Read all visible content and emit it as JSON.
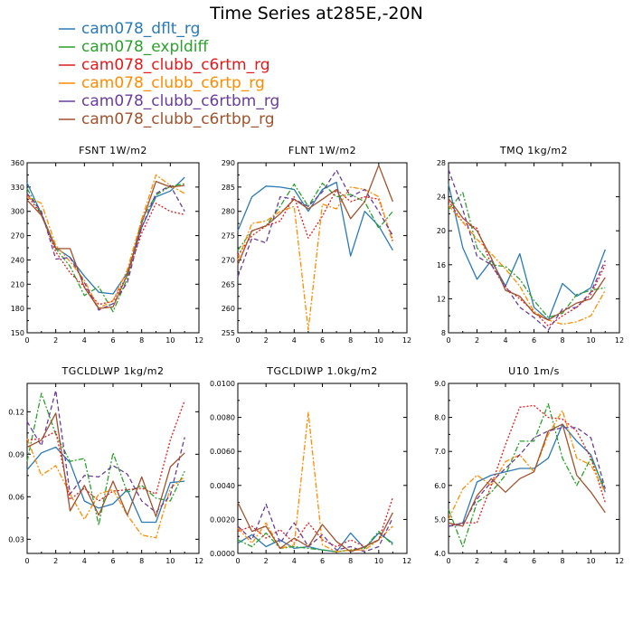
{
  "figure": {
    "title": "Time Series at285E,-20N"
  },
  "legend": [
    {
      "name": "cam078_dflt_rg",
      "color": "#2a7ab5",
      "dash": "solid"
    },
    {
      "name": "cam078_expldiff",
      "color": "#2ca02c",
      "dash": "dashdot"
    },
    {
      "name": "cam078_clubb_c6rtm_rg",
      "color": "#e31a1c",
      "dash": "dot"
    },
    {
      "name": "cam078_clubb_c6rtp_rg",
      "color": "#ff8c00",
      "dash": "dashdot"
    },
    {
      "name": "cam078_clubb_c6rtbm_rg",
      "color": "#6a3d9a",
      "dash": "dash"
    },
    {
      "name": "cam078_clubb_c6rtbp_rg",
      "color": "#a0522d",
      "dash": "solid"
    }
  ],
  "chart_data": [
    {
      "type": "line",
      "title": "FSNT  1W/m2",
      "xlim": [
        0,
        12
      ],
      "xticks": [
        0,
        2,
        4,
        6,
        8,
        10,
        12
      ],
      "ylim": [
        150,
        360
      ],
      "yticks": [
        150,
        180,
        210,
        240,
        270,
        300,
        330,
        360
      ],
      "ytick_labels": [
        "150",
        "180",
        "210",
        "240",
        "270",
        "300",
        "330",
        "360"
      ],
      "x": [
        0,
        1,
        2,
        3,
        4,
        5,
        6,
        7,
        8,
        9,
        10,
        11
      ],
      "series": [
        {
          "name": "cam078_dflt_rg",
          "values": [
            335,
            297,
            255,
            243,
            220,
            200,
            198,
            224,
            280,
            318,
            325,
            342
          ]
        },
        {
          "name": "cam078_expldiff",
          "values": [
            328,
            296,
            254,
            232,
            196,
            207,
            176,
            217,
            290,
            320,
            331,
            334
          ]
        },
        {
          "name": "cam078_clubb_c6rtm_rg",
          "values": [
            320,
            296,
            250,
            224,
            207,
            185,
            189,
            221,
            273,
            310,
            300,
            296
          ]
        },
        {
          "name": "cam078_clubb_c6rtp_rg",
          "values": [
            318,
            310,
            258,
            238,
            215,
            180,
            190,
            228,
            290,
            345,
            332,
            322
          ]
        },
        {
          "name": "cam078_clubb_c6rtbm_rg",
          "values": [
            322,
            300,
            241,
            243,
            212,
            178,
            186,
            212,
            280,
            322,
            332,
            300
          ]
        },
        {
          "name": "cam078_clubb_c6rtbp_rg",
          "values": [
            314,
            295,
            254,
            254,
            206,
            180,
            182,
            222,
            285,
            337,
            330,
            332
          ]
        }
      ]
    },
    {
      "type": "line",
      "title": "FLNT  1W/m2",
      "xlim": [
        0,
        12
      ],
      "xticks": [
        0,
        2,
        4,
        6,
        8,
        10,
        12
      ],
      "ylim": [
        255,
        290
      ],
      "yticks": [
        255,
        260,
        265,
        270,
        275,
        280,
        285,
        290
      ],
      "ytick_labels": [
        "255",
        "260",
        "265",
        "270",
        "275",
        "280",
        "285",
        "290"
      ],
      "x": [
        0,
        1,
        2,
        3,
        4,
        5,
        6,
        7,
        8,
        9,
        10,
        11
      ],
      "series": [
        {
          "name": "cam078_dflt_rg",
          "values": [
            276,
            283,
            285.2,
            285,
            284.5,
            280,
            284.5,
            286,
            270.8,
            280,
            277,
            272
          ]
        },
        {
          "name": "cam078_expldiff",
          "values": [
            272,
            276,
            277,
            281,
            285.6,
            281,
            285.8,
            283,
            283.5,
            282,
            276.5,
            280
          ]
        },
        {
          "name": "cam078_clubb_c6rtm_rg",
          "values": [
            271,
            275,
            277,
            278,
            283,
            274.5,
            279,
            284.5,
            282,
            283,
            282.5,
            274
          ]
        },
        {
          "name": "cam078_clubb_c6rtp_rg",
          "values": [
            270,
            277.5,
            278,
            280,
            281,
            255.6,
            281.5,
            280.5,
            285,
            284.5,
            283,
            273.5
          ]
        },
        {
          "name": "cam078_clubb_c6rtbm_rg",
          "values": [
            266.5,
            274.5,
            273.5,
            283,
            282.5,
            281,
            284,
            288.5,
            283,
            284.5,
            280,
            275
          ]
        },
        {
          "name": "cam078_clubb_c6rtbp_rg",
          "values": [
            269,
            276,
            277,
            279.5,
            282.5,
            280.5,
            282.5,
            284.5,
            278.5,
            282,
            289.5,
            282
          ]
        }
      ]
    },
    {
      "type": "line",
      "title": "TMQ  1kg/m2",
      "xlim": [
        0,
        12
      ],
      "xticks": [
        0,
        2,
        4,
        6,
        8,
        10,
        12
      ],
      "ylim": [
        8,
        28
      ],
      "yticks": [
        8,
        12,
        16,
        20,
        24,
        28
      ],
      "ytick_labels": [
        "8",
        "12",
        "16",
        "20",
        "24",
        "28"
      ],
      "x": [
        0,
        1,
        2,
        3,
        4,
        5,
        6,
        7,
        8,
        9,
        10,
        11
      ],
      "series": [
        {
          "name": "cam078_dflt_rg",
          "values": [
            25.5,
            18,
            14.3,
            16.5,
            13.5,
            17.3,
            11,
            9.5,
            13.8,
            12.3,
            13.3,
            17.8
          ]
        },
        {
          "name": "cam078_expldiff",
          "values": [
            22.5,
            24.5,
            18,
            16,
            15.8,
            14.3,
            11.8,
            9.8,
            10.3,
            12.5,
            13,
            13.3
          ]
        },
        {
          "name": "cam078_clubb_c6rtm_rg",
          "values": [
            23.5,
            21,
            20.3,
            16,
            13.3,
            12,
            10.5,
            8.8,
            10,
            11,
            12.5,
            16
          ]
        },
        {
          "name": "cam078_clubb_c6rtp_rg",
          "values": [
            23,
            21,
            19,
            17.3,
            15.5,
            13.5,
            10.5,
            9.5,
            9,
            9.3,
            10,
            13
          ]
        },
        {
          "name": "cam078_clubb_c6rtbm_rg",
          "values": [
            27.2,
            22.5,
            17,
            16,
            13.5,
            11,
            9.8,
            8.3,
            10.8,
            11,
            12.8,
            16.5
          ]
        },
        {
          "name": "cam078_clubb_c6rtbp_rg",
          "values": [
            23.8,
            21.5,
            20,
            16.8,
            13,
            12.3,
            10.3,
            9.5,
            10.5,
            11.5,
            12,
            14.5
          ]
        }
      ]
    },
    {
      "type": "line",
      "title": "TGCLDLWP  1kg/m2",
      "xlim": [
        0,
        12
      ],
      "xticks": [
        0,
        2,
        4,
        6,
        8,
        10,
        12
      ],
      "ylim": [
        0.02,
        0.14
      ],
      "yticks": [
        0.03,
        0.06,
        0.09,
        0.12
      ],
      "ytick_labels": [
        "0.03",
        "0.06",
        "0.09",
        "0.12"
      ],
      "x": [
        0,
        1,
        2,
        3,
        4,
        5,
        6,
        7,
        8,
        9,
        10,
        11
      ],
      "series": [
        {
          "name": "cam078_dflt_rg",
          "values": [
            0.079,
            0.091,
            0.095,
            0.084,
            0.057,
            0.052,
            0.055,
            0.065,
            0.042,
            0.042,
            0.07,
            0.071
          ]
        },
        {
          "name": "cam078_expldiff",
          "values": [
            0.085,
            0.133,
            0.104,
            0.085,
            0.087,
            0.04,
            0.091,
            0.063,
            0.068,
            0.059,
            0.057,
            0.078
          ]
        },
        {
          "name": "cam078_clubb_c6rtm_rg",
          "values": [
            0.1,
            0.101,
            0.106,
            0.058,
            0.066,
            0.057,
            0.064,
            0.065,
            0.066,
            0.062,
            0.1,
            0.128
          ]
        },
        {
          "name": "cam078_clubb_c6rtp_rg",
          "values": [
            0.101,
            0.075,
            0.082,
            0.062,
            0.044,
            0.062,
            0.065,
            0.047,
            0.033,
            0.031,
            0.066,
            0.074
          ]
        },
        {
          "name": "cam078_clubb_c6rtbm_rg",
          "values": [
            0.113,
            0.096,
            0.135,
            0.062,
            0.075,
            0.074,
            0.082,
            0.076,
            0.057,
            0.049,
            0.061,
            0.102
          ]
        },
        {
          "name": "cam078_clubb_c6rtbp_rg",
          "values": [
            0.095,
            0.1,
            0.119,
            0.05,
            0.068,
            0.047,
            0.071,
            0.047,
            0.074,
            0.046,
            0.081,
            0.091
          ]
        }
      ]
    },
    {
      "type": "line",
      "title": "TGCLDIWP  1.0kg/m2",
      "xlim": [
        0,
        12
      ],
      "xticks": [
        0,
        2,
        4,
        6,
        8,
        10,
        12
      ],
      "ylim": [
        0,
        0.01
      ],
      "yticks": [
        0,
        0.002,
        0.004,
        0.006,
        0.008,
        0.01
      ],
      "ytick_labels": [
        "0.0000",
        "0.0020",
        "0.0040",
        "0.0060",
        "0.0080",
        "0.0100"
      ],
      "x": [
        0,
        1,
        2,
        3,
        4,
        5,
        6,
        7,
        8,
        9,
        10,
        11
      ],
      "series": [
        {
          "name": "cam078_dflt_rg",
          "values": [
            0.0006,
            0.0011,
            0.0004,
            0.0008,
            0.0003,
            0.0004,
            0.0002,
            0.0001,
            0.0012,
            0.0003,
            0.0012,
            0.0006
          ]
        },
        {
          "name": "cam078_expldiff",
          "values": [
            0.0008,
            0.0004,
            0.0012,
            0.0003,
            0.0004,
            0.0003,
            0.0002,
            0.0001,
            0.0002,
            0.0003,
            0.0013,
            0.0005
          ]
        },
        {
          "name": "cam078_clubb_c6rtm_rg",
          "values": [
            0.0013,
            0.0016,
            0.0009,
            0.0014,
            0.0006,
            0.0018,
            0.0008,
            0.0004,
            0.0008,
            0.0004,
            0.0008,
            0.0033
          ]
        },
        {
          "name": "cam078_clubb_c6rtp_rg",
          "values": [
            0.0015,
            0.0006,
            0.0018,
            0.0003,
            0.0005,
            0.0083,
            0.0005,
            0.0001,
            0.0002,
            0.0002,
            0.0008,
            0.0016
          ]
        },
        {
          "name": "cam078_clubb_c6rtbm_rg",
          "values": [
            0.0016,
            0.0008,
            0.0029,
            0.0006,
            0.0018,
            0.0004,
            0.0011,
            0.0002,
            0.0004,
            0.0001,
            0.0004,
            0.0021
          ]
        },
        {
          "name": "cam078_clubb_c6rtbp_rg",
          "values": [
            0.003,
            0.0013,
            0.0016,
            0.0003,
            0.0009,
            0.0004,
            0.0017,
            0.0007,
            0.0001,
            0.0004,
            0.0008,
            0.0024
          ]
        }
      ]
    },
    {
      "type": "line",
      "title": "U10  1m/s",
      "xlim": [
        0,
        12
      ],
      "xticks": [
        0,
        2,
        4,
        6,
        8,
        10,
        12
      ],
      "ylim": [
        4,
        9
      ],
      "yticks": [
        4,
        5,
        6,
        7,
        8,
        9
      ],
      "ytick_labels": [
        "4.0",
        "5.0",
        "6.0",
        "7.0",
        "8.0",
        "9.0"
      ],
      "x": [
        0,
        1,
        2,
        3,
        4,
        5,
        6,
        7,
        8,
        9,
        10,
        11
      ],
      "series": [
        {
          "name": "cam078_dflt_rg",
          "values": [
            4.8,
            4.9,
            6.1,
            6.3,
            6.4,
            6.5,
            6.5,
            6.8,
            7.8,
            7.3,
            6.9,
            5.8
          ]
        },
        {
          "name": "cam078_expldiff",
          "values": [
            5.3,
            4.2,
            5.5,
            5.8,
            6.3,
            7.3,
            7.3,
            8.4,
            6.8,
            6,
            6.8,
            5.9
          ]
        },
        {
          "name": "cam078_clubb_c6rtm_rg",
          "values": [
            4.8,
            4.9,
            4.9,
            6,
            7.2,
            8.3,
            8.35,
            8,
            7.95,
            7.6,
            6.8,
            5.5
          ]
        },
        {
          "name": "cam078_clubb_c6rtp_rg",
          "values": [
            5,
            5.9,
            6.3,
            6,
            6.7,
            6.9,
            6.4,
            7.5,
            8.2,
            6.8,
            6.6,
            5.8
          ]
        },
        {
          "name": "cam078_clubb_c6rtbm_rg",
          "values": [
            4.8,
            4.85,
            5.6,
            6.1,
            6.5,
            6.9,
            7.4,
            7.6,
            7.7,
            7.7,
            7.4,
            5.9
          ]
        },
        {
          "name": "cam078_clubb_c6rtbp_rg",
          "values": [
            4.9,
            4.8,
            5.7,
            6.2,
            5.8,
            6.2,
            6.4,
            7.6,
            7.8,
            6.3,
            5.8,
            5.2
          ]
        }
      ]
    }
  ]
}
